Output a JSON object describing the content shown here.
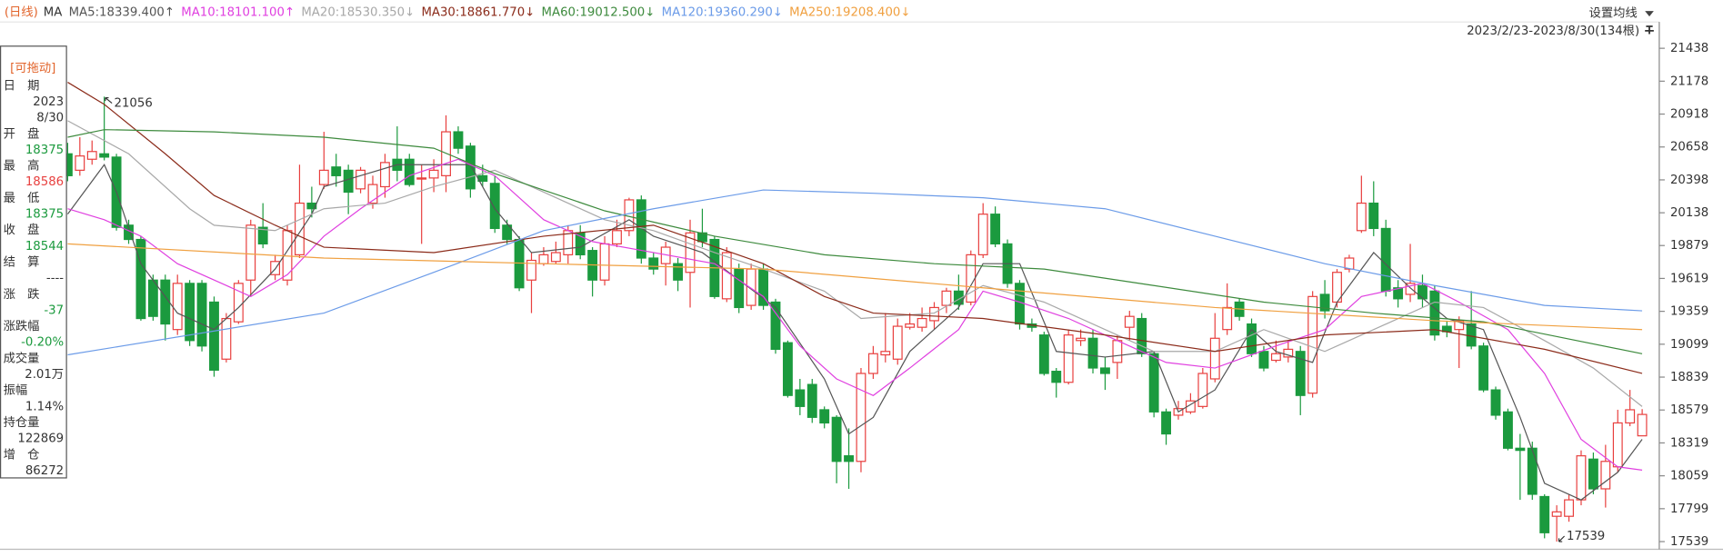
{
  "header": {
    "period": "(日线)",
    "ma": "MA",
    "settings": "设置均线",
    "range": "2023/2/23-2023/8/30(134根)"
  },
  "info_panel": {
    "drag": "[可拖动]",
    "rows": [
      {
        "label": "日　期",
        "lines": [
          "2023",
          "8/30"
        ],
        "color": "#333333"
      },
      {
        "label": "开　盘",
        "lines": [
          18375
        ],
        "color": "#1b9a3e"
      },
      {
        "label": "最　高",
        "lines": [
          18586
        ],
        "color": "#e8403f"
      },
      {
        "label": "最　低",
        "lines": [
          18375
        ],
        "color": "#1b9a3e"
      },
      {
        "label": "收　盘",
        "lines": [
          18544
        ],
        "color": "#1b9a3e"
      },
      {
        "label": "结　算",
        "lines": [
          "----"
        ],
        "color": "#333333"
      },
      {
        "label": "涨　跌",
        "lines": [
          -37
        ],
        "color": "#1b9a3e"
      },
      {
        "label": "涨跌幅",
        "lines": [
          "-0.20%"
        ],
        "color": "#1b9a3e"
      },
      {
        "label": "成交量",
        "lines": [
          "2.01万"
        ],
        "color": "#333333"
      },
      {
        "label": "振幅",
        "lines": [
          "1.14%"
        ],
        "color": "#333333"
      },
      {
        "label": "持仓量",
        "lines": [
          122869
        ],
        "color": "#333333"
      },
      {
        "label": "增　仓",
        "lines": [
          86272
        ],
        "color": "#333333"
      }
    ]
  },
  "chart_data": {
    "type": "candlestick",
    "ylim": [
      17478,
      21646
    ],
    "yticks": [
      21438,
      21178,
      20918,
      20658,
      20398,
      20138,
      19879,
      19619,
      19359,
      19099,
      18839,
      18579,
      18319,
      18059,
      17799,
      17539
    ],
    "up_color": "#e8403f",
    "down_color": "#1b9a3e",
    "max_label": 21056,
    "min_label": 17539,
    "open": [
      20604,
      20474,
      20561,
      20604,
      20578,
      20040,
      19927,
      19606,
      19606,
      19215,
      19580,
      19580,
      19432,
      18981,
      19276,
      19606,
      20023,
      19649,
      19606,
      19806,
      20214,
      20361,
      20500,
      20474,
      20327,
      20214,
      20344,
      20561,
      20561,
      20405,
      20413,
      20431,
      20778,
      20665,
      20431,
      20370,
      20040,
      19927,
      19606,
      19736,
      19753,
      19806,
      19979,
      19840,
      19606,
      19892,
      19997,
      20240,
      19780,
      19736,
      19736,
      19667,
      19979,
      19927,
      19458,
      19693,
      19406,
      19693,
      19432,
      19111,
      18738,
      18781,
      18581,
      18521,
      18217,
      18173,
      18868,
      19015,
      18981,
      19233,
      19233,
      19285,
      19406,
      19519,
      19432,
      19806,
      20127,
      19892,
      19580,
      19259,
      19172,
      18885,
      18798,
      19128,
      19146,
      18911,
      18955,
      19233,
      19302,
      19024,
      18564,
      18538,
      18564,
      18607,
      18825,
      19215,
      19432,
      19259,
      19042,
      18972,
      18998,
      19042,
      18712,
      19493,
      19432,
      19693,
      19997,
      20214,
      20014,
      19545,
      19493,
      19563,
      19519,
      19241,
      19215,
      19259,
      19085,
      18738,
      18564,
      18277,
      18277,
      17895,
      17739,
      17739,
      17869,
      18191,
      17956,
      18130,
      18477,
      18375
    ],
    "high": [
      20691,
      20735,
      20709,
      21056,
      20604,
      20083,
      19953,
      19649,
      19649,
      19649,
      19606,
      19606,
      19476,
      19345,
      19606,
      20083,
      20214,
      19806,
      20040,
      20518,
      20344,
      20778,
      20604,
      20518,
      20500,
      20431,
      20604,
      20821,
      20604,
      20518,
      20561,
      20908,
      20821,
      20691,
      20518,
      20431,
      20083,
      19953,
      19823,
      19866,
      19910,
      20040,
      20040,
      19866,
      19953,
      20083,
      20257,
      20275,
      19823,
      19910,
      19780,
      20083,
      20170,
      19953,
      19866,
      19736,
      19736,
      19736,
      19458,
      19128,
      18825,
      18825,
      18607,
      18538,
      18434,
      18911,
      19085,
      19345,
      19302,
      19345,
      19389,
      19432,
      19545,
      19649,
      19840,
      20214,
      20188,
      19927,
      19606,
      19302,
      19198,
      18911,
      19215,
      19215,
      19215,
      18998,
      19172,
      19363,
      19345,
      19042,
      18590,
      18651,
      18712,
      18911,
      19345,
      19580,
      19458,
      19302,
      19085,
      19128,
      19128,
      19085,
      19519,
      19606,
      19693,
      19806,
      20431,
      20387,
      20083,
      19606,
      19892,
      19649,
      19563,
      19285,
      19319,
      19519,
      19111,
      18764,
      18590,
      18390,
      18329,
      17913,
      17826,
      17913,
      18260,
      18243,
      18304,
      18581,
      18738,
      18586
    ],
    "low": [
      20387,
      20431,
      20518,
      20552,
      19997,
      19892,
      19285,
      19285,
      19128,
      19172,
      19085,
      19042,
      18842,
      18955,
      19259,
      19476,
      19858,
      19606,
      19563,
      19780,
      20101,
      20327,
      20344,
      20127,
      20292,
      20170,
      20257,
      20387,
      20344,
      19892,
      20301,
      20301,
      20604,
      20257,
      20344,
      19979,
      19892,
      19519,
      19345,
      19719,
      19736,
      19736,
      19771,
      19476,
      19563,
      19866,
      19953,
      19736,
      19649,
      19563,
      19519,
      19389,
      19866,
      19458,
      19432,
      19345,
      19371,
      19371,
      19024,
      18677,
      18538,
      18477,
      18434,
      18000,
      17956,
      18087,
      18825,
      18955,
      18937,
      19215,
      19198,
      19215,
      19345,
      19371,
      19406,
      19780,
      19866,
      19545,
      19215,
      19198,
      18851,
      18677,
      18781,
      19085,
      18868,
      18738,
      18825,
      19128,
      18998,
      18521,
      18304,
      18503,
      18547,
      18590,
      18798,
      19172,
      19285,
      18998,
      18885,
      18955,
      18955,
      18538,
      18677,
      19302,
      19389,
      19667,
      19979,
      19953,
      19476,
      19389,
      19432,
      19389,
      19128,
      19154,
      18911,
      19059,
      18720,
      18503,
      18260,
      17869,
      17869,
      17565,
      17539,
      17696,
      17826,
      17913,
      17808,
      18087,
      18451,
      18375
    ],
    "close": [
      20431,
      20587,
      20622,
      20578,
      20023,
      19927,
      19302,
      19319,
      19259,
      19580,
      19128,
      19085,
      18894,
      19302,
      19580,
      20040,
      19892,
      19753,
      19997,
      20214,
      20170,
      20474,
      20431,
      20301,
      20474,
      20361,
      20535,
      20474,
      20361,
      20413,
      20474,
      20778,
      20648,
      20327,
      20387,
      20014,
      19927,
      19545,
      19762,
      19806,
      19823,
      19997,
      19806,
      19606,
      19892,
      19997,
      20240,
      19780,
      19693,
      19866,
      19606,
      19979,
      19910,
      19476,
      19823,
      19389,
      19693,
      19406,
      19059,
      18694,
      18607,
      18521,
      18477,
      18173,
      18173,
      18868,
      19024,
      19042,
      19241,
      19259,
      19302,
      19389,
      19519,
      19415,
      19806,
      20127,
      19892,
      19580,
      19259,
      19233,
      18868,
      18798,
      19172,
      19146,
      18911,
      18868,
      19128,
      19319,
      19024,
      18564,
      18390,
      18590,
      18651,
      18868,
      19146,
      19389,
      19319,
      19024,
      18911,
      19024,
      19059,
      18694,
      19476,
      19363,
      19667,
      19780,
      20214,
      20014,
      19519,
      19458,
      19580,
      19458,
      19172,
      19198,
      19285,
      19085,
      18738,
      18538,
      18277,
      18260,
      17913,
      17609,
      17774,
      17869,
      18217,
      17956,
      18173,
      18477,
      18581,
      18544
    ],
    "ma_series": [
      {
        "label": "MA5:18339.400↑",
        "color": "#555555",
        "x": [
          0,
          3,
          4,
          6,
          9,
          12,
          14,
          17,
          20,
          21,
          24,
          27,
          30,
          33,
          35,
          38,
          42,
          46,
          48,
          52,
          55,
          58,
          62,
          64,
          66,
          69,
          73,
          75,
          78,
          81,
          85,
          89,
          91,
          94,
          97,
          99,
          102,
          104,
          107,
          110,
          113,
          116,
          119,
          121,
          124,
          127,
          129
        ],
        "values": [
          20127,
          20518,
          20301,
          19736,
          19345,
          19215,
          19389,
          19693,
          20127,
          20344,
          20431,
          20518,
          20518,
          20518,
          20170,
          19823,
          19866,
          20083,
          19953,
          19823,
          19606,
          19389,
          18825,
          18390,
          18521,
          19042,
          19389,
          19736,
          19736,
          19042,
          18998,
          19042,
          18564,
          18738,
          19215,
          19042,
          18955,
          19432,
          19823,
          19545,
          19302,
          19215,
          18521,
          18000,
          17869,
          18087,
          18347
        ]
      },
      {
        "label": "MA10:18101.100↑",
        "color": "#e040e0",
        "x": [
          0,
          3,
          6,
          9,
          13,
          15,
          18,
          21,
          24,
          28,
          32,
          35,
          39,
          43,
          48,
          53,
          57,
          60,
          63,
          66,
          69,
          73,
          75,
          78,
          82,
          86,
          90,
          94,
          99,
          103,
          106,
          111,
          114,
          118,
          121,
          124,
          127,
          129
        ],
        "values": [
          20170,
          20083,
          19953,
          19736,
          19563,
          19476,
          19649,
          19953,
          20170,
          20431,
          20561,
          20431,
          20083,
          19910,
          19823,
          19736,
          19476,
          19085,
          18825,
          18694,
          18911,
          19215,
          19519,
          19432,
          19302,
          19128,
          18955,
          18911,
          19085,
          19215,
          19476,
          19580,
          19432,
          19215,
          18868,
          18347,
          18130,
          18104
        ]
      },
      {
        "label": "MA20:18530.350↓",
        "color": "#a8a8a8",
        "x": [
          0,
          5,
          10,
          12,
          17,
          21,
          26,
          30,
          35,
          39,
          44,
          48,
          53,
          57,
          62,
          65,
          71,
          75,
          80,
          85,
          89,
          94,
          98,
          103,
          107,
          112,
          116,
          121,
          125,
          129
        ],
        "values": [
          20865,
          20604,
          20170,
          20040,
          19997,
          20170,
          20214,
          20344,
          20474,
          20301,
          20083,
          19997,
          19823,
          19693,
          19519,
          19302,
          19345,
          19563,
          19432,
          19215,
          19042,
          19042,
          19215,
          19042,
          19215,
          19432,
          19389,
          19128,
          18911,
          18607
        ]
      },
      {
        "label": "MA30:18861.770↓",
        "color": "#8b2b1a",
        "x": [
          0,
          3,
          8,
          12,
          17,
          21,
          30,
          39,
          48,
          57,
          62,
          66,
          75,
          85,
          94,
          103,
          112,
          121,
          129
        ],
        "values": [
          21169,
          20995,
          20604,
          20275,
          20040,
          19866,
          19823,
          19953,
          20040,
          19736,
          19476,
          19345,
          19302,
          19172,
          19042,
          19172,
          19215,
          19059,
          18868
        ]
      },
      {
        "label": "MA60:19012.500↓",
        "color": "#3d8a3d",
        "x": [
          0,
          3,
          12,
          21,
          30,
          35,
          44,
          53,
          62,
          71,
          80,
          89,
          98,
          107,
          116,
          129
        ],
        "values": [
          20735,
          20795,
          20778,
          20735,
          20648,
          20448,
          20153,
          19953,
          19806,
          19736,
          19693,
          19563,
          19432,
          19345,
          19276,
          19024
        ]
      },
      {
        "label": "MA120:19360.290↓",
        "color": "#6b9be8",
        "x": [
          0,
          21,
          30,
          39,
          48,
          57,
          66,
          75,
          85,
          94,
          103,
          112,
          121,
          129
        ],
        "values": [
          19015,
          19345,
          19667,
          19997,
          20170,
          20318,
          20292,
          20257,
          20170,
          19953,
          19736,
          19563,
          19406,
          19363
        ]
      },
      {
        "label": "MA250:19208.400↓",
        "color": "#f0a040",
        "x": [
          0,
          21,
          39,
          57,
          75,
          94,
          112,
          129
        ],
        "values": [
          19892,
          19780,
          19736,
          19693,
          19545,
          19389,
          19285,
          19215
        ]
      }
    ]
  }
}
